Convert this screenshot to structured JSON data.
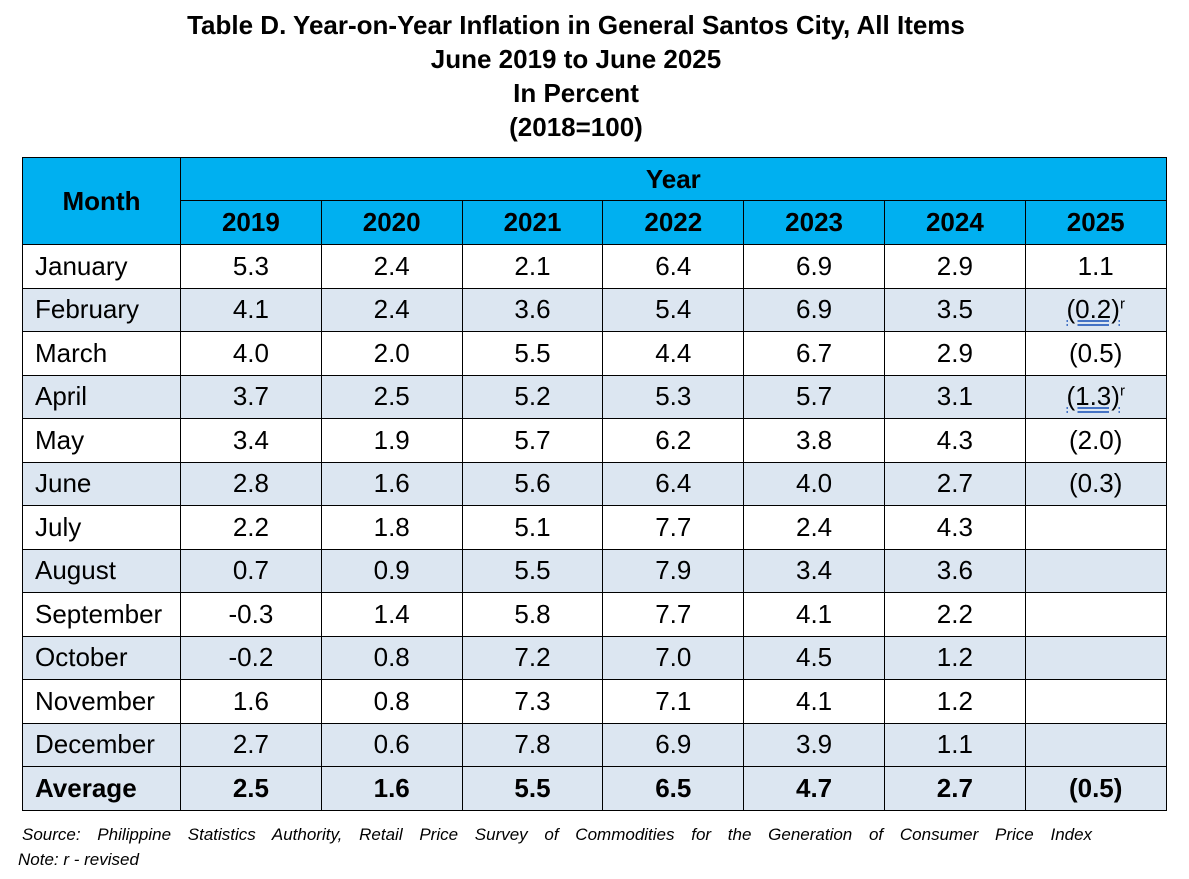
{
  "title": {
    "line1": "Table D. Year-on-Year Inflation in General Santos City, All Items",
    "line2": "June 2019 to June 2025",
    "line3": "In Percent",
    "line4": "(2018=100)"
  },
  "table": {
    "month_header": "Month",
    "year_header": "Year",
    "years": [
      "2019",
      "2020",
      "2021",
      "2022",
      "2023",
      "2024",
      "2025"
    ],
    "rows": [
      {
        "month": "January",
        "values": [
          "5.3",
          "2.4",
          "2.1",
          "6.4",
          "6.9",
          "2.9",
          "1.1"
        ],
        "rev": ""
      },
      {
        "month": "February",
        "values": [
          "4.1",
          "2.4",
          "3.6",
          "5.4",
          "6.9",
          "3.5",
          "(0.2)"
        ],
        "rev": "r"
      },
      {
        "month": "March",
        "values": [
          "4.0",
          "2.0",
          "5.5",
          "4.4",
          "6.7",
          "2.9",
          "(0.5)"
        ],
        "rev": ""
      },
      {
        "month": "April",
        "values": [
          "3.7",
          "2.5",
          "5.2",
          "5.3",
          "5.7",
          "3.1",
          "(1.3)"
        ],
        "rev": "r"
      },
      {
        "month": "May",
        "values": [
          "3.4",
          "1.9",
          "5.7",
          "6.2",
          "3.8",
          "4.3",
          "(2.0)"
        ],
        "rev": ""
      },
      {
        "month": "June",
        "values": [
          "2.8",
          "1.6",
          "5.6",
          "6.4",
          "4.0",
          "2.7",
          "(0.3)"
        ],
        "rev": ""
      },
      {
        "month": "July",
        "values": [
          "2.2",
          "1.8",
          "5.1",
          "7.7",
          "2.4",
          "4.3",
          ""
        ],
        "rev": ""
      },
      {
        "month": "August",
        "values": [
          "0.7",
          "0.9",
          "5.5",
          "7.9",
          "3.4",
          "3.6",
          ""
        ],
        "rev": ""
      },
      {
        "month": "September",
        "values": [
          "-0.3",
          "1.4",
          "5.8",
          "7.7",
          "4.1",
          "2.2",
          ""
        ],
        "rev": ""
      },
      {
        "month": "October",
        "values": [
          "-0.2",
          "0.8",
          "7.2",
          "7.0",
          "4.5",
          "1.2",
          ""
        ],
        "rev": ""
      },
      {
        "month": "November",
        "values": [
          "1.6",
          "0.8",
          "7.3",
          "7.1",
          "4.1",
          "1.2",
          ""
        ],
        "rev": ""
      },
      {
        "month": "December",
        "values": [
          "2.7",
          "0.6",
          "7.8",
          "6.9",
          "3.9",
          "1.1",
          ""
        ],
        "rev": ""
      }
    ],
    "average": {
      "label": "Average",
      "values": [
        "2.5",
        "1.6",
        "5.5",
        "6.5",
        "4.7",
        "2.7",
        "(0.5)"
      ]
    }
  },
  "footer": {
    "source": "Source: Philippine Statistics Authority, Retail Price Survey of Commodities for the Generation of Consumer Price Index",
    "note": "Note: r - revised"
  }
}
